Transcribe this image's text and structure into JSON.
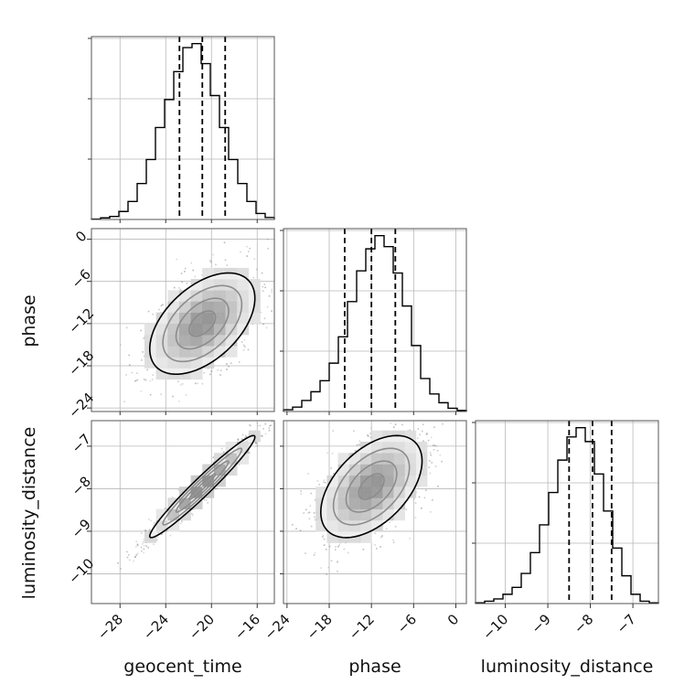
{
  "chart_data": {
    "type": "corner",
    "parameters": [
      "geocent_time",
      "phase",
      "luminosity_distance"
    ],
    "axes": {
      "geocent_time": {
        "label": "geocent_time",
        "range": [
          -30.5,
          -14.5
        ],
        "ticks": [
          -28,
          -24,
          -20,
          -16
        ],
        "tick_labels": [
          "−28",
          "−24",
          "−20",
          "−16"
        ]
      },
      "phase": {
        "label": "phase",
        "range": [
          -24.5,
          1.5
        ],
        "ticks": [
          -24,
          -18,
          -12,
          -6,
          0
        ],
        "tick_labels": [
          "−24",
          "−18",
          "−12",
          "−6",
          "0"
        ]
      },
      "luminosity_distance": {
        "label": "luminosity_distance",
        "range": [
          -10.7,
          -6.4
        ],
        "ticks": [
          -10,
          -9,
          -8,
          -7
        ],
        "tick_labels": [
          "−10",
          "−9",
          "−8",
          "−7"
        ]
      }
    },
    "marginals": {
      "geocent_time": {
        "bin_edges": [
          -30.5,
          -29.7,
          -28.9,
          -28.1,
          -27.3,
          -26.5,
          -25.7,
          -24.9,
          -24.1,
          -23.3,
          -22.5,
          -21.7,
          -20.9,
          -20.1,
          -19.3,
          -18.5,
          -17.7,
          -16.9,
          -16.1,
          -15.3,
          -14.5
        ],
        "counts": [
          0.2,
          0.8,
          1.5,
          4,
          9,
          18,
          30,
          46,
          60,
          74,
          86,
          88,
          78,
          62,
          46,
          30,
          18,
          9,
          3,
          1
        ],
        "quantiles": [
          -22.8,
          -20.8,
          -18.8
        ]
      },
      "phase": {
        "bin_edges": [
          -24.5,
          -23.2,
          -21.9,
          -20.6,
          -19.3,
          -18.0,
          -16.7,
          -15.4,
          -14.1,
          -12.8,
          -11.5,
          -10.2,
          -8.9,
          -7.6,
          -6.3,
          -5.0,
          -3.7,
          -2.4,
          -1.1,
          0.2,
          1.5
        ],
        "counts": [
          0.8,
          2,
          5,
          9,
          14,
          22,
          34,
          50,
          64,
          74,
          80,
          75,
          63,
          48,
          30,
          15,
          8,
          4,
          1.5,
          0.5
        ],
        "quantiles": [
          -15.8,
          -12.0,
          -8.6
        ]
      },
      "luminosity_distance": {
        "bin_edges": [
          -10.7,
          -10.485,
          -10.27,
          -10.055,
          -9.84,
          -9.625,
          -9.41,
          -9.195,
          -8.98,
          -8.765,
          -8.55,
          -8.335,
          -8.12,
          -7.905,
          -7.69,
          -7.475,
          -7.26,
          -7.045,
          -6.83,
          -6.615,
          -6.4
        ],
        "counts": [
          0.3,
          1,
          2,
          4,
          7,
          13,
          22,
          34,
          48,
          62,
          72,
          76,
          70,
          56,
          40,
          24,
          12,
          4,
          1,
          0.3
        ],
        "quantiles": [
          -8.5,
          -7.95,
          -7.5
        ]
      }
    },
    "pairs": [
      {
        "x": "geocent_time",
        "y": "phase",
        "mean": [
          -20.8,
          -12.0
        ],
        "std": [
          2.3,
          3.6
        ],
        "rho": 0.5
      },
      {
        "x": "geocent_time",
        "y": "luminosity_distance",
        "mean": [
          -20.8,
          -7.95
        ],
        "std": [
          2.3,
          0.6
        ],
        "rho": 0.97
      },
      {
        "x": "phase",
        "y": "luminosity_distance",
        "mean": [
          -12.0,
          -7.95
        ],
        "std": [
          3.6,
          0.6
        ],
        "rho": 0.5
      }
    ],
    "grid": true,
    "legend": "none"
  }
}
